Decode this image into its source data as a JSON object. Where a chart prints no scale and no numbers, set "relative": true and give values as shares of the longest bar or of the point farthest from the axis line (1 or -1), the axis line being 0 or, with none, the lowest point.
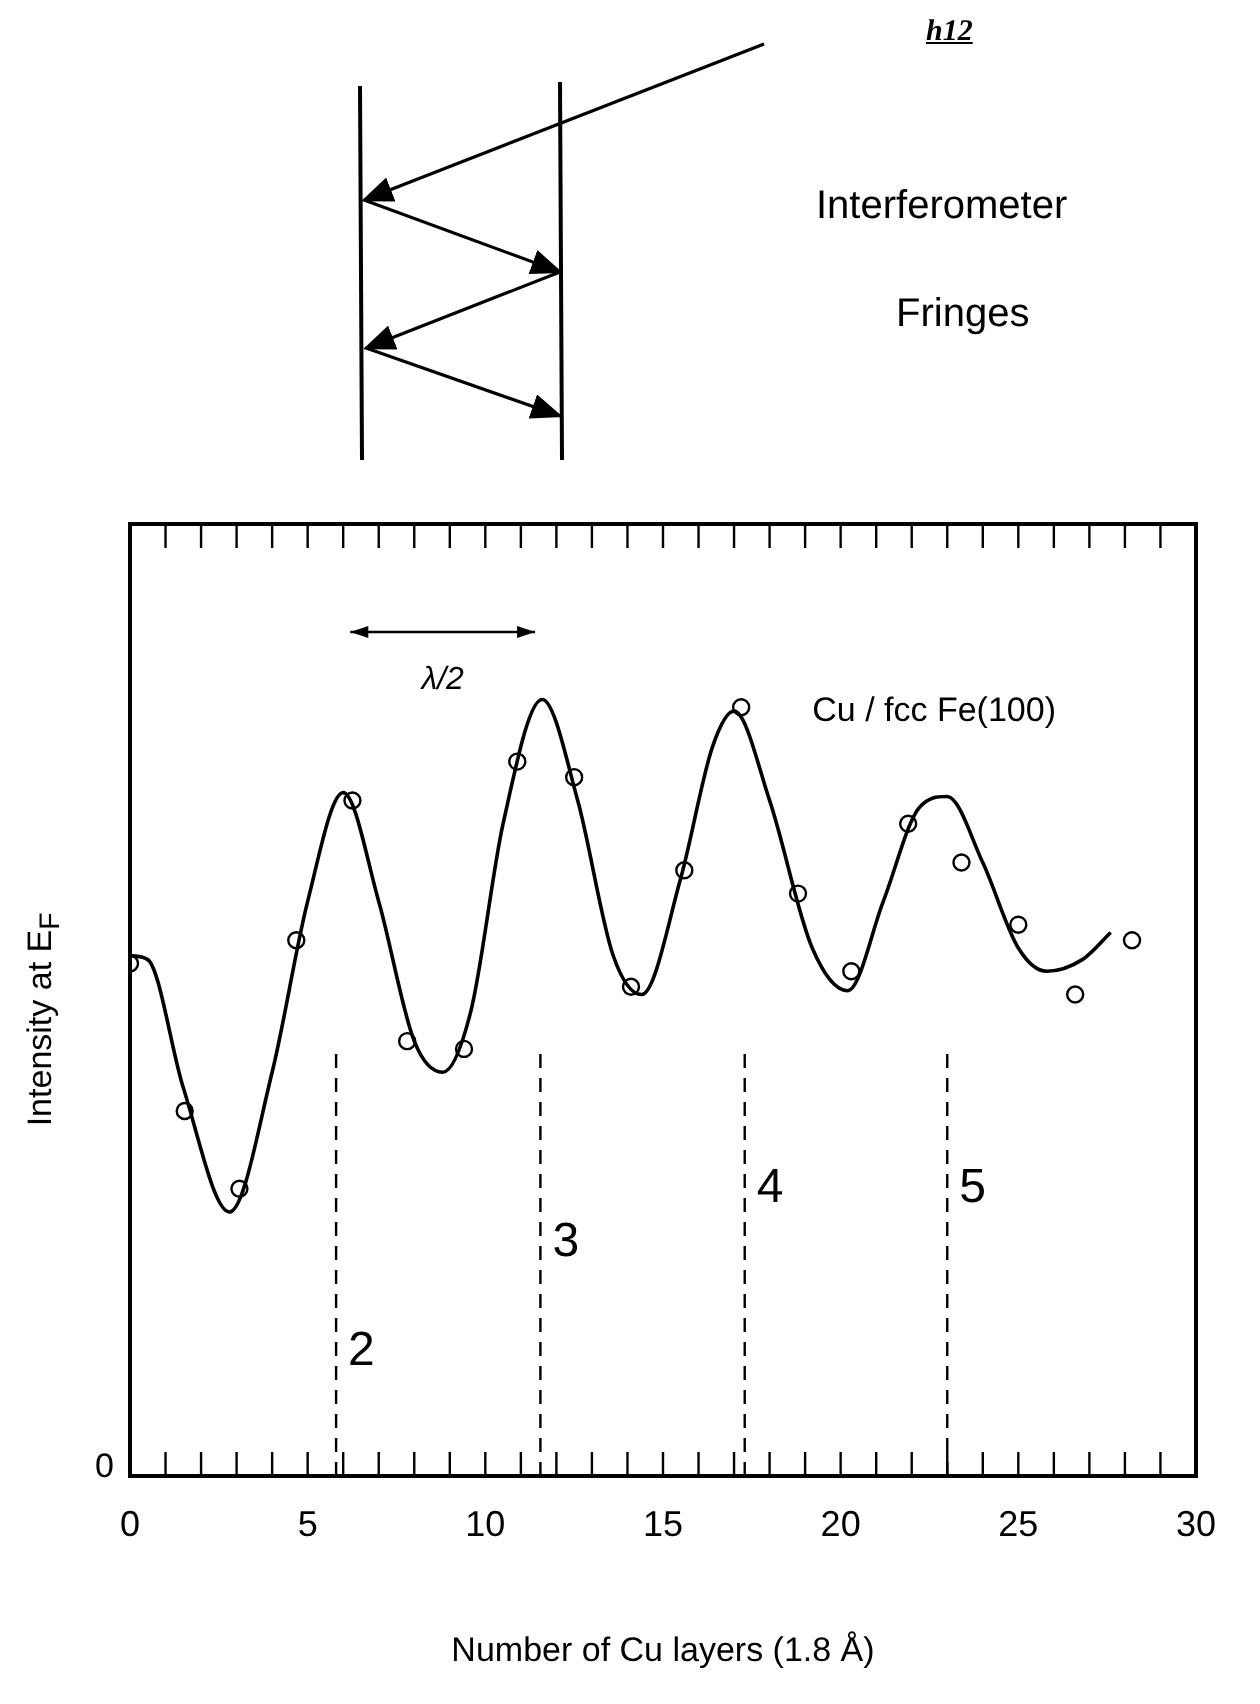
{
  "chart_data": {
    "type": "scatter",
    "relative": true,
    "xlabel": "Number of Cu layers (1.8 Å)",
    "ylabel": "Intensity at E$_{F}$",
    "xlim": [
      0,
      30
    ],
    "xticks": [
      0,
      {
        "value": 1,
        "label": null
      },
      {
        "value": 2,
        "label": null
      },
      {
        "value": 3,
        "label": null
      },
      {
        "value": 4,
        "label": null
      },
      5,
      {
        "value": 6,
        "label": null
      },
      {
        "value": 7,
        "label": null
      },
      {
        "value": 8,
        "label": null
      },
      {
        "value": 9,
        "label": null
      },
      10,
      {
        "value": 11,
        "label": null
      },
      {
        "value": 12,
        "label": null
      },
      {
        "value": 13,
        "label": null
      },
      {
        "value": 14,
        "label": null
      },
      15,
      {
        "value": 16,
        "label": null
      },
      {
        "value": 17,
        "label": null
      },
      {
        "value": 18,
        "label": null
      },
      {
        "value": 19,
        "label": null
      },
      20,
      {
        "value": 21,
        "label": null
      },
      {
        "value": 22,
        "label": null
      },
      {
        "value": 23,
        "label": null
      },
      {
        "value": 24,
        "label": null
      },
      25,
      {
        "value": 26,
        "label": null
      },
      {
        "value": 27,
        "label": null
      },
      {
        "value": 28,
        "label": null
      },
      {
        "value": 29,
        "label": null
      },
      30
    ],
    "tick_labels": "x",
    "grid": false,
    "legend": false,
    "series": [
      {
        "type": "scatter",
        "color": "#000000",
        "marker": "circle",
        "x": [
          0,
          1.54,
          3.08,
          4.68,
          6.26,
          7.8,
          9.4,
          10.9,
          12.5,
          14.1,
          15.6,
          17.2,
          18.8,
          20.3,
          21.9,
          23.4,
          25.0,
          26.6,
          28.2
        ],
        "values": [
          0.66,
          0.47,
          0.37,
          0.69,
          0.87,
          0.56,
          0.55,
          0.92,
          0.9,
          0.63,
          0.78,
          0.99,
          0.75,
          0.65,
          0.84,
          0.79,
          0.71,
          0.62,
          0.69
        ]
      },
      {
        "type": "line",
        "color": "#000000",
        "marker": "none",
        "line_style": "solid",
        "x": [
          0,
          0.5,
          1.5,
          2.8,
          4,
          5,
          6,
          7,
          8,
          8.8,
          9.6,
          10.5,
          11.6,
          12.6,
          13.6,
          14.4,
          15.5,
          16.4,
          17,
          18,
          19.2,
          20.2,
          21.2,
          22.2,
          23,
          24,
          25,
          25.8,
          26.8,
          27.6
        ],
        "values": [
          0.67,
          0.665,
          0.5,
          0.34,
          0.52,
          0.74,
          0.88,
          0.74,
          0.56,
          0.52,
          0.6,
          0.84,
          1,
          0.87,
          0.67,
          0.62,
          0.77,
          0.94,
          0.985,
          0.87,
          0.68,
          0.625,
          0.74,
          0.86,
          0.875,
          0.79,
          0.68,
          0.65,
          0.665,
          0.7
        ]
      }
    ],
    "ref_lines": [
      {
        "axis": "x",
        "value": 5.8,
        "line_style": "dashed",
        "color": "#000000"
      },
      {
        "axis": "x",
        "value": 11.55,
        "line_style": "dashed",
        "color": "#000000"
      },
      {
        "axis": "x",
        "value": 17.3,
        "line_style": "dashed",
        "color": "#000000"
      },
      {
        "axis": "x",
        "value": 23.0,
        "line_style": "dashed",
        "color": "#000000"
      }
    ],
    "annotations": [
      "h12",
      "Interferometer",
      "Fringes",
      "λ/2",
      "Cu / fcc Fe(100)",
      "0",
      {
        "text": "2",
        "x": 5.8,
        "y": 0.16
      },
      {
        "text": "3",
        "x": 11.55,
        "y": 0.3
      },
      {
        "text": "4",
        "x": 17.3,
        "y": 0.37
      },
      {
        "text": "5",
        "x": 23.0,
        "y": 0.37
      }
    ]
  }
}
